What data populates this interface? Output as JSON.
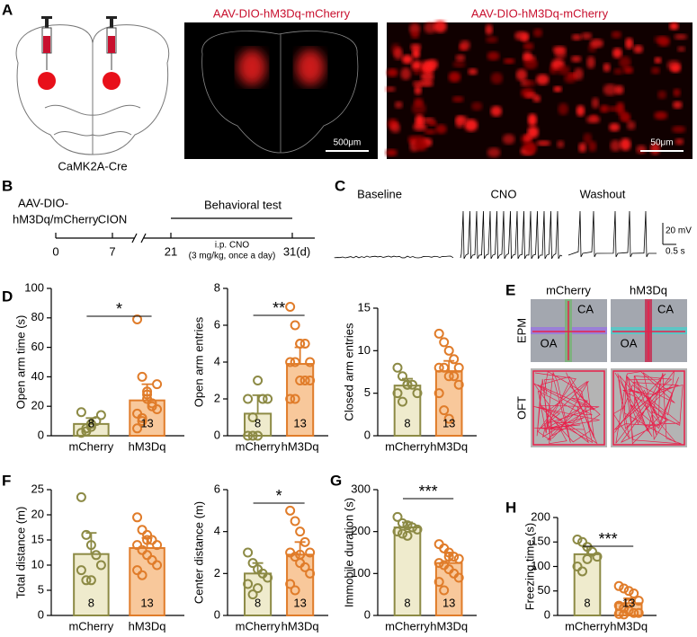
{
  "panel_letters": [
    "A",
    "B",
    "C",
    "D",
    "E",
    "F",
    "G",
    "H"
  ],
  "panel_a": {
    "construct_1": "AAV-DIO-hM3Dq-mCherry",
    "construct_2": "AAV-DIO-hM3Dq-mCherry",
    "mouse": "CaMK2A-Cre",
    "scale_1": "500μm",
    "scale_2": "50μm"
  },
  "panel_b": {
    "virus_line1": "AAV-DIO-",
    "virus_line2": "hM3Dq/mCherry",
    "surgery": "CION",
    "test": "Behavioral test",
    "days": [
      "0",
      "7",
      "21",
      "31(d)"
    ],
    "injection": "i.p. CNO",
    "dose": "(3 mg/kg, once a day)"
  },
  "panel_c": {
    "phases": [
      "Baseline",
      "CNO",
      "Washout"
    ],
    "scale_v": "20 mV",
    "scale_t": "0.5 s"
  },
  "panel_e": {
    "groups": [
      "mCherry",
      "hM3Dq"
    ],
    "tests": [
      "EPM",
      "OFT"
    ],
    "arms": [
      "CA",
      "OA",
      "CA",
      "OA"
    ]
  },
  "chart_data": [
    {
      "type": "bar",
      "ylabel": "Open arm time (s)",
      "categories": [
        "mCherry",
        "hM3Dq"
      ],
      "values": [
        8,
        24
      ],
      "errors": [
        4,
        11
      ],
      "n": [
        8,
        13
      ],
      "points": [
        [
          2,
          5,
          8,
          10,
          14,
          16,
          3,
          6
        ],
        [
          79,
          40,
          25,
          20,
          18,
          15,
          10,
          30,
          22,
          35,
          5,
          12,
          28
        ]
      ],
      "significance": "*",
      "colors": [
        "#efebcd",
        "#f8c89b"
      ],
      "edge_colors": [
        "#8c8a45",
        "#e07c2a"
      ],
      "ylim": [
        0,
        100
      ],
      "yticks": [
        0,
        20,
        40,
        60,
        80,
        100
      ]
    },
    {
      "type": "bar",
      "ylabel": "Open arm entries",
      "categories": [
        "mCherry",
        "hM3Dq"
      ],
      "values": [
        1.2,
        3.9
      ],
      "errors": [
        1.0,
        0.9
      ],
      "n": [
        8,
        13
      ],
      "points": [
        [
          0,
          0,
          0,
          2,
          2,
          2,
          1,
          3
        ],
        [
          7,
          6,
          5,
          5,
          4,
          4,
          4,
          3,
          3,
          3,
          2,
          2,
          5
        ]
      ],
      "significance": "**",
      "colors": [
        "#efebcd",
        "#f8c89b"
      ],
      "edge_colors": [
        "#8c8a45",
        "#e07c2a"
      ],
      "ylim": [
        0,
        8
      ],
      "yticks": [
        0,
        2,
        4,
        6,
        8
      ]
    },
    {
      "type": "bar",
      "ylabel": "Closed arm entries",
      "categories": [
        "mCherry",
        "hM3Dq"
      ],
      "values": [
        5.9,
        7.6
      ],
      "errors": [
        0.8,
        1.2
      ],
      "n": [
        8,
        13
      ],
      "points": [
        [
          8,
          7,
          6,
          6,
          5,
          5,
          4,
          6
        ],
        [
          12,
          11,
          10,
          9,
          8,
          8,
          8,
          7,
          7,
          6,
          5,
          3,
          2
        ]
      ],
      "colors": [
        "#efebcd",
        "#f8c89b"
      ],
      "edge_colors": [
        "#8c8a45",
        "#e07c2a"
      ],
      "ylim": [
        0,
        15
      ],
      "yticks": [
        0,
        5,
        10,
        15
      ]
    },
    {
      "type": "bar",
      "ylabel": "Total distance (m)",
      "categories": [
        "mCherry",
        "hM3Dq"
      ],
      "values": [
        12.2,
        13.4
      ],
      "errors": [
        4.2,
        2.0
      ],
      "n": [
        8,
        13
      ],
      "points": [
        [
          23.5,
          16,
          14,
          12,
          10,
          9,
          7,
          7
        ],
        [
          19.5,
          17,
          16,
          15,
          14,
          14,
          13,
          12,
          11,
          10,
          9,
          8,
          15
        ]
      ],
      "colors": [
        "#efebcd",
        "#f8c89b"
      ],
      "edge_colors": [
        "#8c8a45",
        "#e07c2a"
      ],
      "ylim": [
        0,
        25
      ],
      "yticks": [
        0,
        5,
        10,
        15,
        20,
        25
      ]
    },
    {
      "type": "bar",
      "ylabel": "Center distance (m)",
      "categories": [
        "mCherry",
        "hM3Dq"
      ],
      "values": [
        2.0,
        2.9
      ],
      "errors": [
        0.5,
        0.6
      ],
      "n": [
        8,
        13
      ],
      "points": [
        [
          3,
          2.5,
          2.2,
          2,
          1.8,
          1.5,
          1,
          1.3
        ],
        [
          5,
          4.5,
          4,
          3.5,
          3,
          3,
          2.8,
          2.5,
          2.3,
          2,
          1.5,
          1.2,
          2.9
        ]
      ],
      "significance": "*",
      "colors": [
        "#efebcd",
        "#f8c89b"
      ],
      "edge_colors": [
        "#8c8a45",
        "#e07c2a"
      ],
      "ylim": [
        0,
        6
      ],
      "yticks": [
        0,
        2,
        4,
        6
      ]
    },
    {
      "type": "bar",
      "ylabel": "Immobile duration (s)",
      "categories": [
        "mCherry",
        "hM3Dq"
      ],
      "values": [
        210,
        125
      ],
      "errors": [
        12,
        25
      ],
      "n": [
        8,
        13
      ],
      "points": [
        [
          235,
          220,
          215,
          210,
          205,
          200,
          195,
          190
        ],
        [
          170,
          160,
          150,
          140,
          135,
          125,
          120,
          110,
          100,
          90,
          80,
          60,
          140
        ]
      ],
      "significance": "***",
      "colors": [
        "#efebcd",
        "#f8c89b"
      ],
      "edge_colors": [
        "#8c8a45",
        "#e07c2a"
      ],
      "ylim": [
        0,
        300
      ],
      "yticks": [
        0,
        100,
        200,
        300
      ]
    },
    {
      "type": "bar",
      "ylabel": "Freezing time (s)",
      "categories": [
        "mCherry",
        "hM3Dq"
      ],
      "values": [
        125,
        25
      ],
      "errors": [
        15,
        10
      ],
      "n": [
        8,
        13
      ],
      "points": [
        [
          155,
          150,
          140,
          130,
          120,
          100,
          90,
          115
        ],
        [
          60,
          55,
          50,
          45,
          30,
          20,
          15,
          10,
          5,
          5,
          3,
          2,
          25
        ]
      ],
      "significance": "***",
      "colors": [
        "#efebcd",
        "#f8c89b"
      ],
      "edge_colors": [
        "#8c8a45",
        "#e07c2a"
      ],
      "ylim": [
        0,
        200
      ],
      "yticks": [
        0,
        50,
        100,
        150,
        200
      ]
    }
  ]
}
